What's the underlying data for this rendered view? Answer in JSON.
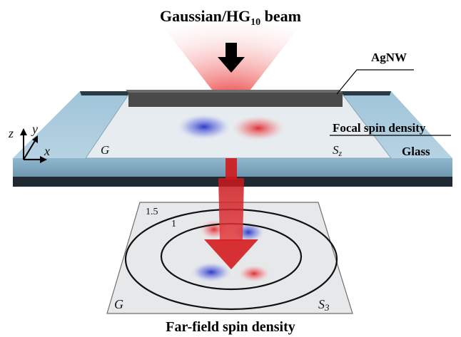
{
  "title": {
    "main": "Gaussian/HG",
    "sub": "10",
    "tail": " beam"
  },
  "labels": {
    "agnw": "AgNW",
    "focal_spin": "Focal spin density",
    "glass": "Glass",
    "far_field": "Far-field spin density"
  },
  "upper_panel": {
    "left_label": "G",
    "right_label": "S",
    "right_sub": "z"
  },
  "lower_panel": {
    "left_label": "G",
    "right_label": "S",
    "right_sub": "3",
    "ring_outer": "1.5",
    "ring_inner": "1"
  },
  "axes": {
    "z": "z",
    "y": "y",
    "x": "x"
  },
  "colors": {
    "beam_red": "#e8272a",
    "spin_blue": "#2330c8",
    "spin_red": "#e0262b",
    "glass": "#9cc2d8",
    "wire": "#4a4a4a"
  }
}
